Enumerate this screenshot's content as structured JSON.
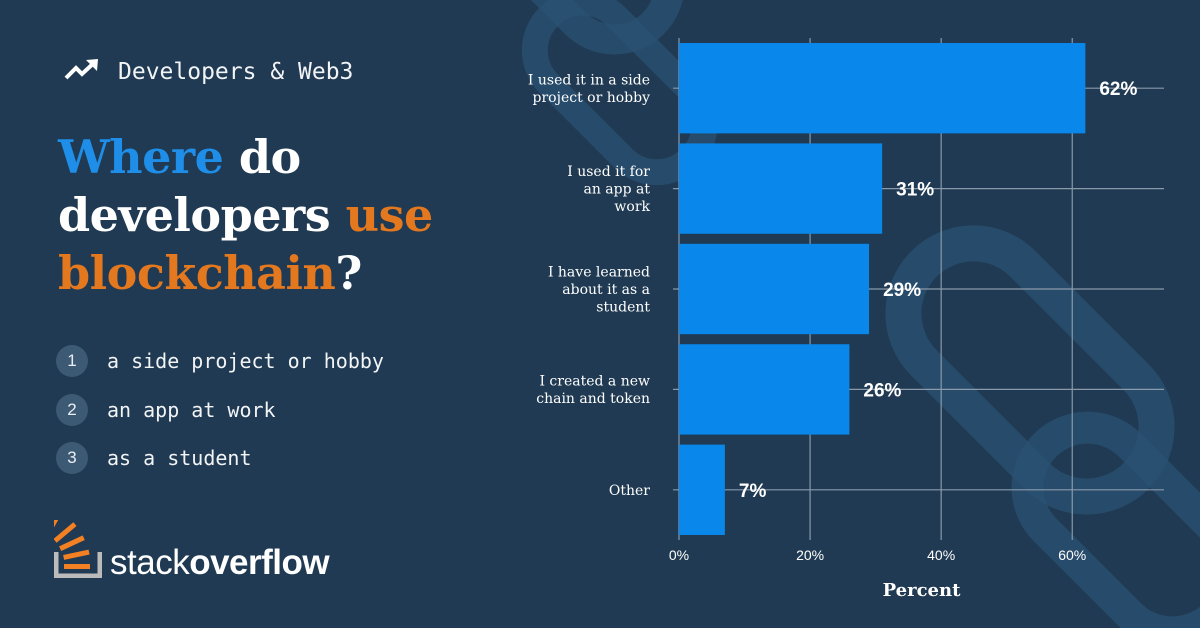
{
  "header": {
    "eyebrow": "Developers & Web3",
    "eyebrow_icon": "trending-up-icon"
  },
  "headline": {
    "part1": "Where",
    "part2": " do developers ",
    "part3": "use",
    "part4": "blockchain",
    "part5": "?",
    "accent_blue": "#1e8ee8",
    "accent_orange": "#e4781f"
  },
  "reasons": [
    {
      "num": "1",
      "text": "a side project or hobby"
    },
    {
      "num": "2",
      "text": "an app at work"
    },
    {
      "num": "3",
      "text": "as a student"
    }
  ],
  "logo": {
    "icon": "stack-overflow-logo-icon",
    "word1": "stack",
    "word2": "overflow"
  },
  "chart_data": {
    "type": "bar",
    "orientation": "horizontal",
    "categories": [
      [
        "I used it in a side",
        "project or hobby"
      ],
      [
        "I used it for",
        "an app at",
        "work"
      ],
      [
        "I have learned",
        "about it as a",
        "student"
      ],
      [
        "I created a new",
        "chain and token"
      ],
      [
        "Other"
      ]
    ],
    "values": [
      62,
      31,
      29,
      26,
      7
    ],
    "value_labels": [
      "62%",
      "31%",
      "29%",
      "26%",
      "7%"
    ],
    "xticks": [
      0,
      20,
      40,
      60
    ],
    "xtick_labels": [
      "0%",
      "20%",
      "40%",
      "60%"
    ],
    "xlabel": "Percent",
    "xlim": [
      0,
      74
    ],
    "grid": true,
    "bar_color": "#0a87ea",
    "background": "#1f3a52"
  }
}
